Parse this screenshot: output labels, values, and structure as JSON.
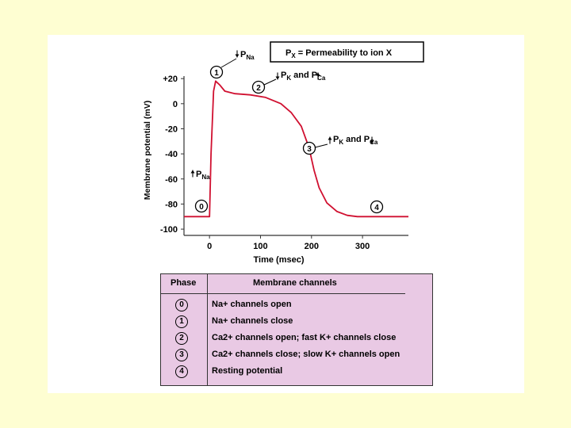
{
  "legend_box": {
    "text_main": "P",
    "text_sub": "X",
    "text_rest": "= Permeability to ion X"
  },
  "chart_data": {
    "type": "line",
    "xlabel": "Time (msec)",
    "ylabel": "Membrane potential (mV)",
    "x_ticks": [
      "0",
      "100",
      "200",
      "300"
    ],
    "y_ticks": [
      "+20",
      "0",
      "-20",
      "-40",
      "-60",
      "-80",
      "-100"
    ],
    "xlim": [
      -50,
      390
    ],
    "ylim": [
      -105,
      22
    ],
    "series": [
      {
        "x": [
          -50,
          0,
          3,
          8,
          12,
          20,
          30,
          50,
          80,
          110,
          140,
          160,
          180,
          195,
          205,
          215,
          230,
          250,
          270,
          290,
          310,
          340,
          390
        ],
        "y": [
          -90,
          -90,
          -40,
          10,
          18,
          15,
          10,
          8,
          7,
          5,
          0,
          -7,
          -18,
          -35,
          -53,
          -67,
          -79,
          -86,
          -89,
          -90,
          -90,
          -90,
          -90
        ]
      }
    ],
    "color": "#d01030",
    "phase_markers": [
      "0",
      "1",
      "2",
      "3",
      "4"
    ]
  },
  "annotations": {
    "pna_down": {
      "main": "P",
      "sub": "Na"
    },
    "pna_up": {
      "main": "P",
      "sub": "Na"
    },
    "pk_down_pca_up": {
      "p1": "P",
      "s1": "K",
      "and": "and",
      "p2": "P",
      "s2": "Ca"
    },
    "pk_up_pca_down": {
      "p1": "P",
      "s1": "K",
      "and": "and",
      "p2": "P",
      "s2": "Ca"
    }
  },
  "table": {
    "header_phase": "Phase",
    "header_channels": "Membrane channels",
    "rows": [
      {
        "phase": "0",
        "text": "Na+ channels open"
      },
      {
        "phase": "1",
        "text": "Na+ channels close"
      },
      {
        "phase": "2",
        "text": "Ca2+ channels open; fast K+ channels close"
      },
      {
        "phase": "3",
        "text": "Ca2+ channels close; slow K+ channels open"
      },
      {
        "phase": "4",
        "text": "Resting potential"
      }
    ]
  }
}
